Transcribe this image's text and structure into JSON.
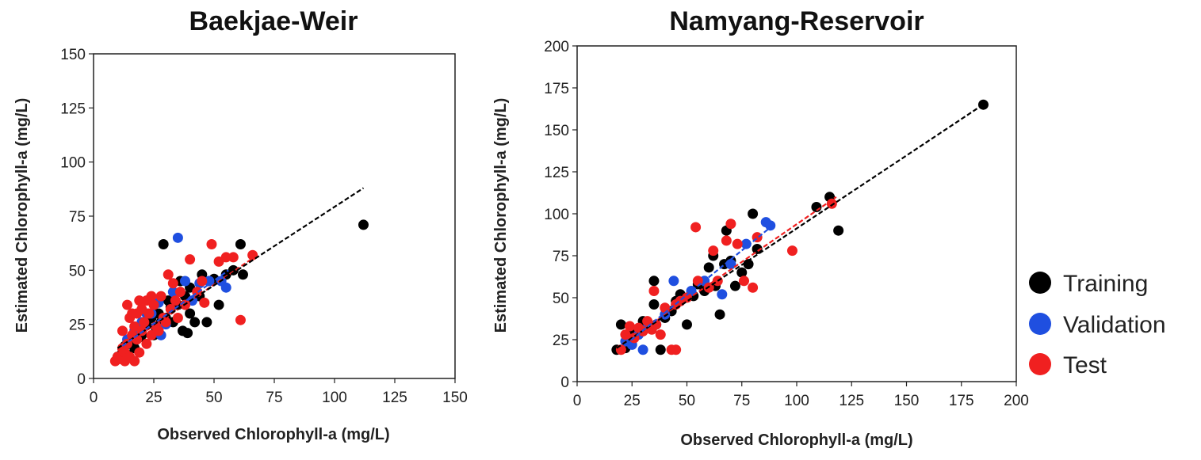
{
  "legend": [
    {
      "key": "training",
      "label": "Training",
      "color": "#000000"
    },
    {
      "key": "validation",
      "label": "Validation",
      "color": "#1f4fe0"
    },
    {
      "key": "test",
      "label": "Test",
      "color": "#f02020"
    }
  ],
  "chart_data": [
    {
      "type": "scatter",
      "title": "Baekjae-Weir",
      "xlabel": "Observed Chlorophyll-a (mg/L)",
      "ylabel": "Estimated Chlorophyll-a (mg/L)",
      "xlim": [
        0,
        150
      ],
      "ylim": [
        0,
        150
      ],
      "xticks": [
        0,
        25,
        50,
        75,
        100,
        125,
        150
      ],
      "yticks": [
        0,
        25,
        50,
        75,
        100,
        125,
        150
      ],
      "series": [
        {
          "name": "Training",
          "points": [
            [
              10,
              10
            ],
            [
              12,
              12
            ],
            [
              13,
              15
            ],
            [
              15,
              18
            ],
            [
              17,
              14
            ],
            [
              18,
              22
            ],
            [
              20,
              20
            ],
            [
              22,
              25
            ],
            [
              24,
              28
            ],
            [
              25,
              20
            ],
            [
              27,
              30
            ],
            [
              28,
              26
            ],
            [
              29,
              62
            ],
            [
              30,
              28
            ],
            [
              32,
              33
            ],
            [
              33,
              26
            ],
            [
              35,
              34
            ],
            [
              36,
              45
            ],
            [
              37,
              22
            ],
            [
              38,
              38
            ],
            [
              40,
              30
            ],
            [
              40,
              42
            ],
            [
              42,
              26
            ],
            [
              44,
              38
            ],
            [
              45,
              48
            ],
            [
              47,
              26
            ],
            [
              48,
              45
            ],
            [
              50,
              46
            ],
            [
              52,
              34
            ],
            [
              55,
              48
            ],
            [
              58,
              50
            ],
            [
              61,
              62
            ],
            [
              62,
              48
            ],
            [
              112,
              71
            ],
            [
              14,
              11
            ],
            [
              19,
              19
            ],
            [
              26,
              23
            ],
            [
              31,
              36
            ],
            [
              39,
              21
            ]
          ]
        },
        {
          "name": "Validation",
          "points": [
            [
              14,
              18
            ],
            [
              17,
              22
            ],
            [
              20,
              26
            ],
            [
              24,
              30
            ],
            [
              27,
              35
            ],
            [
              30,
              25
            ],
            [
              33,
              40
            ],
            [
              35,
              65
            ],
            [
              38,
              45
            ],
            [
              41,
              36
            ],
            [
              44,
              44
            ],
            [
              48,
              45
            ],
            [
              53,
              45
            ],
            [
              55,
              42
            ],
            [
              22,
              30
            ],
            [
              28,
              20
            ]
          ]
        },
        {
          "name": "Test",
          "points": [
            [
              9,
              8
            ],
            [
              10,
              10
            ],
            [
              11,
              9
            ],
            [
              12,
              14
            ],
            [
              12,
              22
            ],
            [
              13,
              12
            ],
            [
              14,
              16
            ],
            [
              14,
              34
            ],
            [
              15,
              10
            ],
            [
              15,
              28
            ],
            [
              16,
              20
            ],
            [
              17,
              8
            ],
            [
              17,
              24
            ],
            [
              18,
              18
            ],
            [
              18,
              30
            ],
            [
              19,
              12
            ],
            [
              20,
              22
            ],
            [
              20,
              32
            ],
            [
              21,
              26
            ],
            [
              22,
              16
            ],
            [
              22,
              36
            ],
            [
              23,
              30
            ],
            [
              24,
              20
            ],
            [
              25,
              34
            ],
            [
              26,
              24
            ],
            [
              27,
              22
            ],
            [
              28,
              38
            ],
            [
              29,
              28
            ],
            [
              30,
              26
            ],
            [
              31,
              48
            ],
            [
              32,
              32
            ],
            [
              34,
              36
            ],
            [
              35,
              28
            ],
            [
              36,
              40
            ],
            [
              38,
              34
            ],
            [
              40,
              55
            ],
            [
              43,
              40
            ],
            [
              46,
              35
            ],
            [
              49,
              62
            ],
            [
              52,
              54
            ],
            [
              55,
              56
            ],
            [
              58,
              56
            ],
            [
              61,
              27
            ],
            [
              66,
              57
            ],
            [
              16,
              30
            ],
            [
              19,
              36
            ],
            [
              24,
              38
            ],
            [
              33,
              44
            ],
            [
              45,
              45
            ],
            [
              13,
              8
            ]
          ]
        }
      ],
      "fit_lines": [
        {
          "name": "Test",
          "x": [
            10,
            68
          ],
          "y": [
            13,
            57
          ]
        },
        {
          "name": "Training",
          "x": [
            10,
            112
          ],
          "y": [
            14,
            88
          ]
        },
        {
          "name": "Validation",
          "x": [
            12,
            56
          ],
          "y": [
            15,
            50
          ]
        }
      ]
    },
    {
      "type": "scatter",
      "title": "Namyang-Reservoir",
      "xlabel": "Observed Chlorophyll-a (mg/L)",
      "ylabel": "Estimated Chlorophyll-a (mg/L)",
      "xlim": [
        0,
        200
      ],
      "ylim": [
        0,
        200
      ],
      "xticks": [
        0,
        25,
        50,
        75,
        100,
        125,
        150,
        175,
        200
      ],
      "yticks": [
        0,
        25,
        50,
        75,
        100,
        125,
        150,
        175,
        200
      ],
      "series": [
        {
          "name": "Training",
          "points": [
            [
              18,
              19
            ],
            [
              20,
              34
            ],
            [
              22,
              20
            ],
            [
              25,
              30
            ],
            [
              30,
              36
            ],
            [
              35,
              60
            ],
            [
              35,
              46
            ],
            [
              38,
              19
            ],
            [
              40,
              38
            ],
            [
              43,
              42
            ],
            [
              45,
              48
            ],
            [
              47,
              52
            ],
            [
              50,
              34
            ],
            [
              53,
              51
            ],
            [
              55,
              58
            ],
            [
              58,
              54
            ],
            [
              60,
              68
            ],
            [
              62,
              75
            ],
            [
              63,
              57
            ],
            [
              65,
              40
            ],
            [
              67,
              70
            ],
            [
              68,
              90
            ],
            [
              70,
              72
            ],
            [
              72,
              57
            ],
            [
              75,
              65
            ],
            [
              78,
              70
            ],
            [
              80,
              100
            ],
            [
              82,
              79
            ],
            [
              109,
              104
            ],
            [
              115,
              110
            ],
            [
              119,
              90
            ],
            [
              185,
              165
            ]
          ]
        },
        {
          "name": "Validation",
          "points": [
            [
              22,
              24
            ],
            [
              25,
              22
            ],
            [
              28,
              28
            ],
            [
              30,
              19
            ],
            [
              32,
              32
            ],
            [
              36,
              34
            ],
            [
              40,
              40
            ],
            [
              44,
              60
            ],
            [
              47,
              48
            ],
            [
              52,
              54
            ],
            [
              58,
              60
            ],
            [
              66,
              52
            ],
            [
              70,
              70
            ],
            [
              77,
              82
            ],
            [
              86,
              95
            ],
            [
              88,
              93
            ]
          ]
        },
        {
          "name": "Test",
          "points": [
            [
              20,
              19
            ],
            [
              22,
              28
            ],
            [
              24,
              33
            ],
            [
              26,
              26
            ],
            [
              28,
              32
            ],
            [
              30,
              30
            ],
            [
              32,
              36
            ],
            [
              34,
              31
            ],
            [
              36,
              34
            ],
            [
              38,
              28
            ],
            [
              40,
              44
            ],
            [
              43,
              19
            ],
            [
              45,
              19
            ],
            [
              45,
              46
            ],
            [
              47,
              48
            ],
            [
              50,
              50
            ],
            [
              54,
              92
            ],
            [
              55,
              60
            ],
            [
              60,
              56
            ],
            [
              62,
              78
            ],
            [
              64,
              60
            ],
            [
              68,
              84
            ],
            [
              70,
              94
            ],
            [
              73,
              82
            ],
            [
              76,
              60
            ],
            [
              80,
              56
            ],
            [
              82,
              86
            ],
            [
              98,
              78
            ],
            [
              116,
              106
            ],
            [
              35,
              54
            ]
          ]
        }
      ],
      "fit_lines": [
        {
          "name": "Test",
          "x": [
            18,
            118
          ],
          "y": [
            20,
            110
          ]
        },
        {
          "name": "Training",
          "x": [
            18,
            186
          ],
          "y": [
            20,
            166
          ]
        },
        {
          "name": "Validation",
          "x": [
            22,
            90
          ],
          "y": [
            22,
            94
          ]
        }
      ]
    }
  ]
}
